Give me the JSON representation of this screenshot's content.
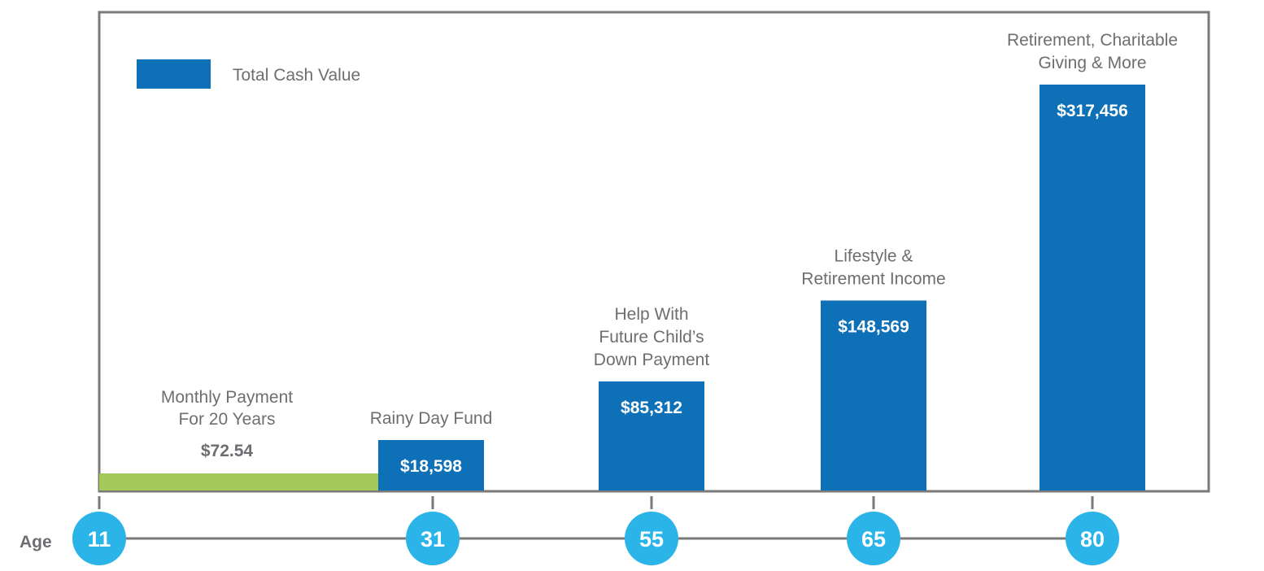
{
  "chart_data": {
    "type": "bar",
    "legend": {
      "label": "Total Cash Value",
      "color": "#0e71b8",
      "placement": "top-left"
    },
    "x_label": "Age",
    "ages": [
      "11",
      "31",
      "55",
      "65",
      "80"
    ],
    "bars": [
      {
        "age": "31",
        "value": 18598,
        "value_label": "$18,598",
        "caption": [
          "Rainy Day Fund"
        ]
      },
      {
        "age": "55",
        "value": 85312,
        "value_label": "$85,312",
        "caption": [
          "Help With",
          "Future Child’s",
          "Down Payment"
        ]
      },
      {
        "age": "65",
        "value": 148569,
        "value_label": "$148,569",
        "caption": [
          "Lifestyle &",
          "Retirement Income"
        ]
      },
      {
        "age": "80",
        "value": 317456,
        "value_label": "$317,456",
        "caption": [
          "Retirement, Charitable",
          "Giving & More"
        ]
      }
    ],
    "payment": {
      "from_age": "11",
      "to_age": "31",
      "value_label": "$72.54",
      "caption": [
        "Monthly Payment",
        "For 20 Years"
      ],
      "color": "#a4c85a"
    },
    "ylim": [
      0,
      317456
    ],
    "colors": {
      "bar": "#0e71b8",
      "age_circle": "#2ab4e8",
      "text": "#6d6e71",
      "axis": "#7a7a7a"
    }
  }
}
